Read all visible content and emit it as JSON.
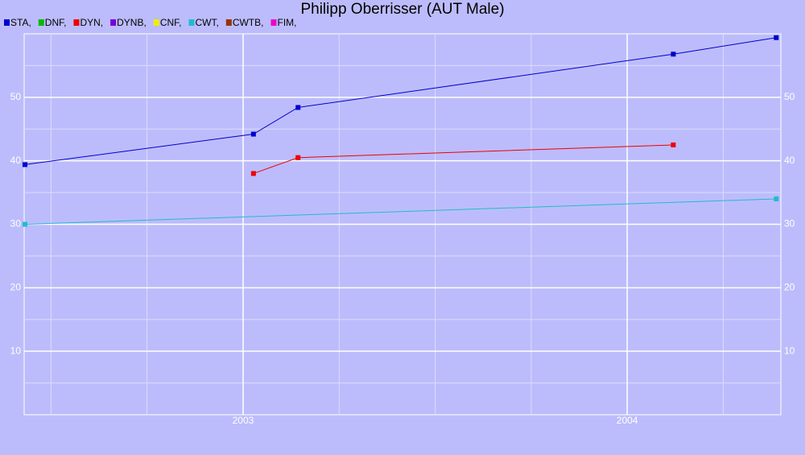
{
  "chart_data": {
    "type": "line",
    "title": "Philipp Oberrisser (AUT Male)",
    "background": "#bcbcfc",
    "grid": true,
    "xlim": [
      2002.43,
      2004.4
    ],
    "xticks": [
      2003,
      2004
    ],
    "xminorticks": [
      2002.5,
      2002.75,
      2003.25,
      2003.5,
      2003.75,
      2004.25
    ],
    "ylim": [
      0,
      60
    ],
    "yticks": [
      10,
      20,
      30,
      40,
      50
    ],
    "yminorticks": [
      5,
      15,
      25,
      35,
      45,
      55
    ],
    "series": [
      {
        "name": "STA,",
        "color": "#0000cc",
        "x": [
          2002.432,
          2003.027,
          2003.143,
          2004.12,
          2004.388
        ],
        "values": [
          39.4,
          44.2,
          48.4,
          56.8,
          59.4
        ]
      },
      {
        "name": "DNF,",
        "color": "#00bb00",
        "x": [],
        "values": []
      },
      {
        "name": "DYN,",
        "color": "#ee0000",
        "x": [
          2003.027,
          2003.143,
          2004.12
        ],
        "values": [
          38.0,
          40.5,
          42.5
        ]
      },
      {
        "name": "DYNB,",
        "color": "#7700dd",
        "x": [],
        "values": []
      },
      {
        "name": "CNF,",
        "color": "#eeee00",
        "x": [],
        "values": []
      },
      {
        "name": "CWT,",
        "color": "#22bbcc",
        "x": [
          2002.432,
          2004.388
        ],
        "values": [
          30.0,
          34.0
        ]
      },
      {
        "name": "CWTB,",
        "color": "#993300",
        "x": [],
        "values": []
      },
      {
        "name": "FIM,",
        "color": "#ee00cc",
        "x": [],
        "values": []
      }
    ]
  }
}
